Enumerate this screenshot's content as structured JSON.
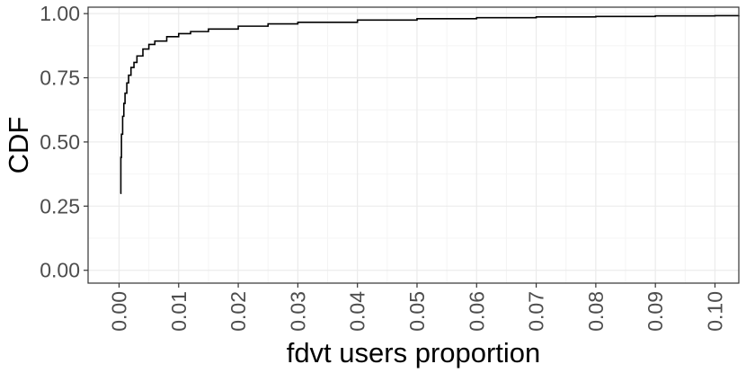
{
  "chart_data": {
    "type": "line",
    "subtype": "ecdf-step",
    "title": "",
    "xlabel": "fdvt users proportion",
    "ylabel": "CDF",
    "xlim": [
      -0.0052,
      0.104
    ],
    "ylim": [
      -0.05,
      1.025
    ],
    "x_ticks": [
      0.0,
      0.01,
      0.02,
      0.03,
      0.04,
      0.05,
      0.06,
      0.07,
      0.08,
      0.09,
      0.1
    ],
    "x_tick_labels": [
      "0.00",
      "0.01",
      "0.02",
      "0.03",
      "0.04",
      "0.05",
      "0.06",
      "0.07",
      "0.08",
      "0.09",
      "0.10"
    ],
    "y_ticks": [
      0.0,
      0.25,
      0.5,
      0.75,
      1.0
    ],
    "y_tick_labels": [
      "0.00",
      "0.25",
      "0.50",
      "0.75",
      "1.00"
    ],
    "grid": true,
    "legend": "none",
    "colors": {
      "line": "#000000",
      "grid_major": "#ebebeb",
      "grid_minor": "#f4f4f4",
      "panel_border": "#333333",
      "tick_text": "#4d4d4d"
    },
    "series": [
      {
        "x": [
          0.0002,
          0.0003,
          0.0004,
          0.0006,
          0.0008,
          0.001,
          0.0013,
          0.0016,
          0.002,
          0.0025,
          0.003,
          0.004,
          0.005,
          0.006,
          0.008,
          0.01,
          0.012,
          0.015,
          0.02,
          0.025,
          0.03,
          0.04,
          0.05,
          0.06,
          0.07,
          0.08,
          0.09,
          0.1,
          0.104
        ],
        "y": [
          0.3,
          0.44,
          0.53,
          0.6,
          0.65,
          0.69,
          0.73,
          0.76,
          0.79,
          0.81,
          0.835,
          0.862,
          0.88,
          0.893,
          0.91,
          0.922,
          0.93,
          0.94,
          0.951,
          0.96,
          0.966,
          0.975,
          0.98,
          0.984,
          0.987,
          0.989,
          0.991,
          0.992,
          0.993
        ]
      }
    ]
  }
}
